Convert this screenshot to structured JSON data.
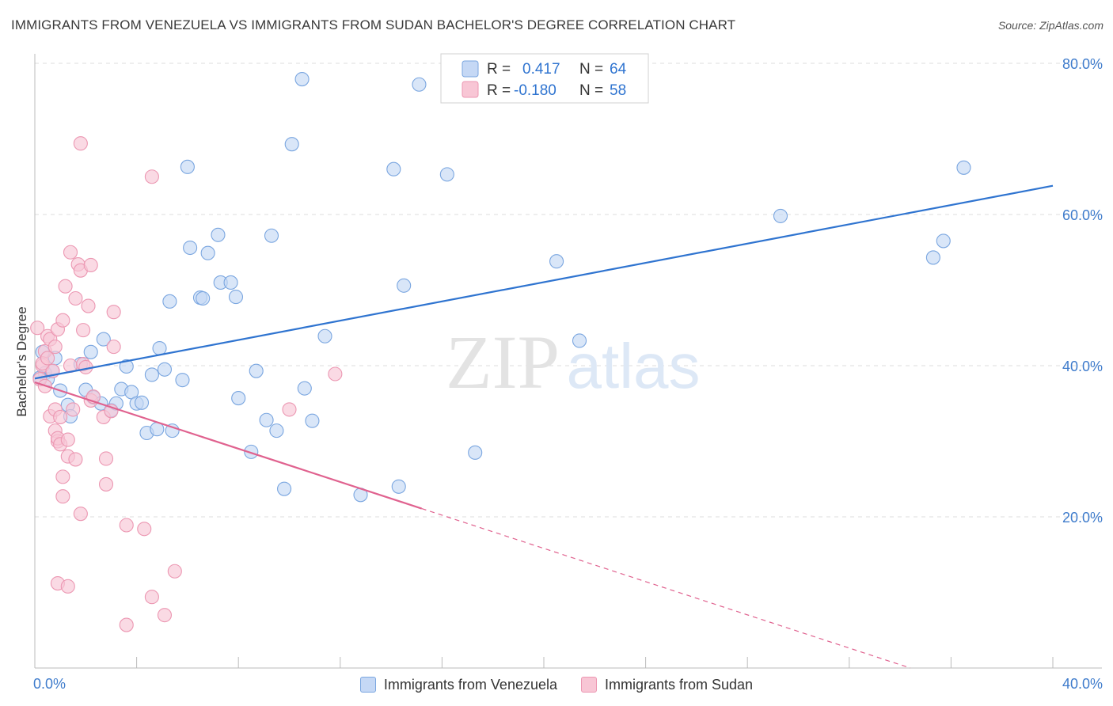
{
  "title": "IMMIGRANTS FROM VENEZUELA VS IMMIGRANTS FROM SUDAN BACHELOR'S DEGREE CORRELATION CHART",
  "source": "Source: ZipAtlas.com",
  "watermark": {
    "zip": "ZIP",
    "atlas": "atlas"
  },
  "colors": {
    "blue_fill": "#c5d8f5",
    "blue_stroke": "#7aa6e0",
    "blue_line": "#2f74d0",
    "pink_fill": "#f8c6d5",
    "pink_stroke": "#ec97b2",
    "pink_line": "#e0628f",
    "axis_label": "#3f7ccc",
    "grid": "#dddddd"
  },
  "legend": {
    "rows": [
      {
        "r_label": "R =",
        "r_value": "0.417",
        "n_label": "N =",
        "n_value": "64"
      },
      {
        "r_label": "R =",
        "r_value": "-0.180",
        "n_label": "N =",
        "n_value": "58"
      }
    ]
  },
  "chart_data": {
    "type": "scatter",
    "title": "IMMIGRANTS FROM VENEZUELA VS IMMIGRANTS FROM SUDAN BACHELOR'S DEGREE CORRELATION CHART",
    "xlabel": "",
    "ylabel": "Bachelor's Degree",
    "xlim": [
      0,
      40
    ],
    "ylim": [
      0,
      80
    ],
    "x_tick_labels": [
      "0.0%",
      "40.0%"
    ],
    "y_ticks": [
      20,
      40,
      60,
      80
    ],
    "y_tick_labels": [
      "20.0%",
      "40.0%",
      "60.0%",
      "80.0%"
    ],
    "grid": true,
    "legend_position": "top-center",
    "series": [
      {
        "name": "Immigrants from Venezuela",
        "color": "#7aa6e0",
        "trend": {
          "x": [
            0,
            40
          ],
          "y": [
            38.3,
            63.8
          ],
          "dashed_from": null
        },
        "points": [
          [
            0.3,
            41.8
          ],
          [
            0.4,
            39.0
          ],
          [
            0.5,
            38.2
          ],
          [
            0.7,
            39.3
          ],
          [
            0.8,
            41.0
          ],
          [
            1.0,
            36.7
          ],
          [
            1.3,
            34.8
          ],
          [
            1.4,
            33.3
          ],
          [
            1.8,
            40.2
          ],
          [
            2.0,
            36.8
          ],
          [
            2.2,
            41.8
          ],
          [
            2.3,
            35.8
          ],
          [
            2.6,
            35.0
          ],
          [
            2.7,
            43.5
          ],
          [
            3.0,
            34.1
          ],
          [
            3.2,
            35.0
          ],
          [
            3.4,
            36.9
          ],
          [
            3.6,
            39.9
          ],
          [
            3.8,
            36.5
          ],
          [
            4.0,
            35.0
          ],
          [
            4.2,
            35.1
          ],
          [
            4.4,
            31.1
          ],
          [
            4.6,
            38.8
          ],
          [
            4.8,
            31.6
          ],
          [
            4.9,
            42.3
          ],
          [
            5.1,
            39.5
          ],
          [
            5.3,
            48.5
          ],
          [
            5.4,
            31.4
          ],
          [
            5.8,
            38.1
          ],
          [
            6.0,
            66.3
          ],
          [
            6.1,
            55.6
          ],
          [
            6.5,
            49.0
          ],
          [
            6.6,
            48.9
          ],
          [
            6.8,
            54.9
          ],
          [
            7.2,
            57.3
          ],
          [
            7.3,
            51.0
          ],
          [
            7.7,
            51.0
          ],
          [
            7.9,
            49.1
          ],
          [
            8.0,
            35.7
          ],
          [
            8.5,
            28.6
          ],
          [
            8.7,
            39.3
          ],
          [
            9.1,
            32.8
          ],
          [
            9.3,
            57.2
          ],
          [
            9.5,
            31.4
          ],
          [
            9.8,
            23.7
          ],
          [
            10.1,
            69.3
          ],
          [
            10.5,
            77.9
          ],
          [
            10.6,
            37.0
          ],
          [
            10.9,
            32.7
          ],
          [
            11.4,
            43.9
          ],
          [
            12.8,
            22.9
          ],
          [
            14.1,
            66.0
          ],
          [
            14.3,
            24.0
          ],
          [
            14.5,
            50.6
          ],
          [
            15.1,
            77.2
          ],
          [
            16.2,
            65.3
          ],
          [
            17.3,
            28.5
          ],
          [
            20.5,
            53.8
          ],
          [
            21.4,
            43.3
          ],
          [
            29.3,
            59.8
          ],
          [
            35.3,
            54.3
          ],
          [
            35.7,
            56.5
          ],
          [
            36.5,
            66.2
          ],
          [
            0.2,
            38.4
          ]
        ]
      },
      {
        "name": "Immigrants from Sudan",
        "color": "#ec97b2",
        "trend": {
          "x": [
            0,
            34.4
          ],
          "y": [
            37.8,
            0
          ],
          "dashed_from": 15.2
        },
        "points": [
          [
            0.1,
            45.0
          ],
          [
            0.2,
            38.2
          ],
          [
            0.3,
            40.0
          ],
          [
            0.4,
            37.3
          ],
          [
            0.4,
            41.9
          ],
          [
            0.5,
            43.9
          ],
          [
            0.6,
            43.5
          ],
          [
            0.6,
            33.3
          ],
          [
            0.7,
            39.3
          ],
          [
            0.8,
            42.5
          ],
          [
            0.8,
            34.2
          ],
          [
            0.8,
            31.4
          ],
          [
            0.9,
            30.0
          ],
          [
            0.9,
            30.4
          ],
          [
            0.9,
            11.2
          ],
          [
            0.9,
            44.8
          ],
          [
            1.0,
            33.2
          ],
          [
            1.0,
            29.6
          ],
          [
            1.1,
            46.0
          ],
          [
            1.1,
            25.3
          ],
          [
            1.1,
            22.7
          ],
          [
            1.2,
            50.5
          ],
          [
            1.3,
            28.0
          ],
          [
            1.3,
            10.8
          ],
          [
            1.3,
            30.2
          ],
          [
            1.4,
            55.0
          ],
          [
            1.4,
            40.0
          ],
          [
            1.5,
            34.2
          ],
          [
            1.6,
            48.9
          ],
          [
            1.6,
            27.6
          ],
          [
            1.7,
            53.4
          ],
          [
            1.8,
            52.6
          ],
          [
            1.8,
            69.4
          ],
          [
            1.8,
            20.4
          ],
          [
            1.9,
            44.7
          ],
          [
            1.9,
            40.2
          ],
          [
            2.0,
            39.8
          ],
          [
            2.1,
            47.9
          ],
          [
            2.2,
            53.3
          ],
          [
            2.2,
            35.4
          ],
          [
            2.3,
            35.9
          ],
          [
            2.7,
            33.2
          ],
          [
            2.8,
            24.3
          ],
          [
            2.8,
            27.7
          ],
          [
            3.0,
            34.0
          ],
          [
            3.1,
            42.5
          ],
          [
            3.1,
            47.1
          ],
          [
            3.6,
            18.9
          ],
          [
            3.6,
            5.7
          ],
          [
            4.3,
            18.4
          ],
          [
            4.6,
            65.0
          ],
          [
            4.6,
            9.4
          ],
          [
            5.1,
            7.0
          ],
          [
            5.5,
            12.8
          ],
          [
            10.0,
            34.2
          ],
          [
            11.8,
            38.9
          ],
          [
            0.3,
            40.3
          ],
          [
            0.5,
            41.0
          ]
        ]
      }
    ]
  }
}
